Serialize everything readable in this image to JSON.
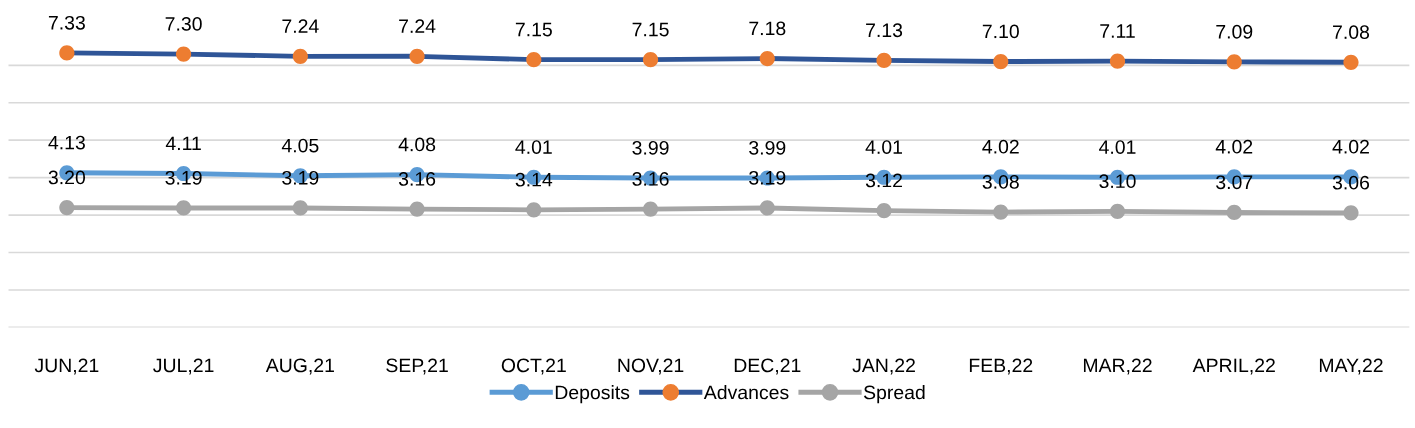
{
  "chart_data": {
    "type": "line",
    "categories": [
      "JUN,21",
      "JUL,21",
      "AUG,21",
      "SEP,21",
      "OCT,21",
      "NOV,21",
      "DEC,21",
      "JAN,22",
      "FEB,22",
      "MAR,22",
      "APRIL,22",
      "MAY,22"
    ],
    "series": [
      {
        "name": "Deposits",
        "color": "#5b9bd5",
        "values": [
          4.13,
          4.11,
          4.05,
          4.08,
          4.01,
          3.99,
          3.99,
          4.01,
          4.02,
          4.01,
          4.02,
          4.02
        ],
        "value_labels": [
          "4.13",
          "4.11",
          "4.05",
          "4.08",
          "4.01",
          "3.99",
          "3.99",
          "4.01",
          "4.02",
          "4.01",
          "4.02",
          "4.02"
        ]
      },
      {
        "name": "Advances",
        "color": "#2f5597",
        "colors": [
          "#ed7d31",
          "#ed7d31",
          "#ed7d31",
          "#ed7d31",
          "#ed7d31",
          "#ed7d31",
          "#ed7d31",
          "#ed7d31",
          "#ed7d31",
          "#ed7d31",
          "#ed7d31",
          "#ed7d31"
        ],
        "values": [
          7.33,
          7.3,
          7.24,
          7.24,
          7.15,
          7.15,
          7.18,
          7.13,
          7.1,
          7.11,
          7.09,
          7.08
        ],
        "value_labels": [
          "7.33",
          "7.30",
          "7.24",
          "7.24",
          "7.15",
          "7.15",
          "7.18",
          "7.13",
          "7.10",
          "7.11",
          "7.09",
          "7.08"
        ]
      },
      {
        "name": "Spread",
        "color": "#a5a5a5",
        "values": [
          3.2,
          3.19,
          3.19,
          3.16,
          3.14,
          3.16,
          3.19,
          3.12,
          3.08,
          3.1,
          3.07,
          3.06
        ],
        "value_labels": [
          "3.20",
          "3.19",
          "3.19",
          "3.16",
          "3.14",
          "3.16",
          "3.19",
          "3.12",
          "3.08",
          "3.10",
          "3.07",
          "3.06"
        ]
      }
    ],
    "yticks": [
      {
        "value": 0,
        "label": null
      },
      {
        "value": 1,
        "label": null
      },
      {
        "value": 2,
        "label": null
      },
      {
        "value": 3,
        "label": null
      },
      {
        "value": 4,
        "label": null
      },
      {
        "value": 5,
        "label": null
      },
      {
        "value": 6,
        "label": null
      },
      {
        "value": 7,
        "label": null
      }
    ],
    "tick_labels": "x",
    "grid": "y",
    "legend": "bottom",
    "marker": "circle",
    "line_style": "solid"
  }
}
